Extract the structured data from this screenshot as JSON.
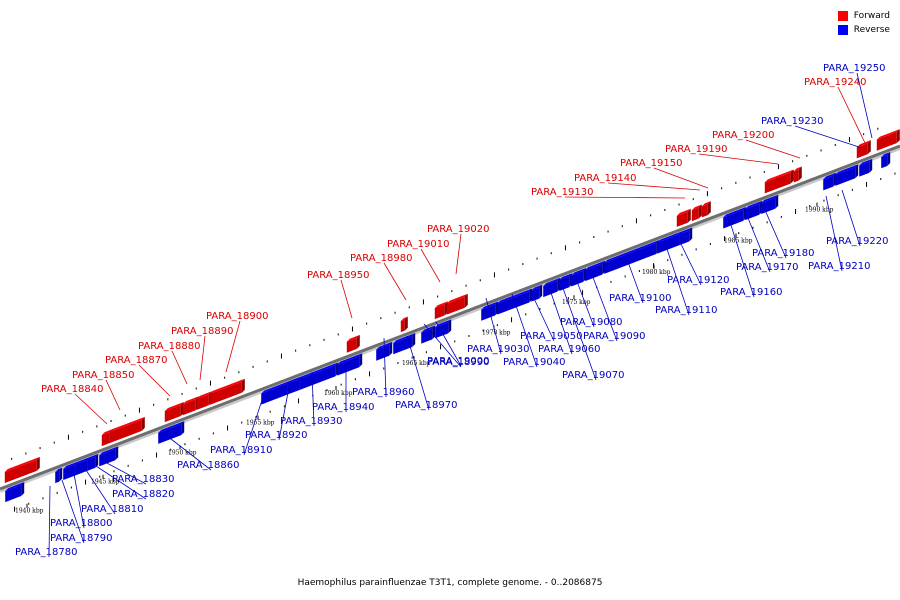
{
  "legend": {
    "forward_label": "Forward",
    "reverse_label": "Reverse",
    "forward_color": "#ff0000",
    "reverse_color": "#0000ff"
  },
  "caption": "Haemophilus parainfluenzae T3T1, complete genome. - 0..2086875",
  "ticks": [
    {
      "label": "1940 kbp"
    },
    {
      "label": "1945 kbp"
    },
    {
      "label": "1950 kbp"
    },
    {
      "label": "1955 kbp"
    },
    {
      "label": "1960 kbp"
    },
    {
      "label": "1965 kbp"
    },
    {
      "label": "1970 kbp"
    },
    {
      "label": "1975 kbp"
    },
    {
      "label": "1980 kbp"
    },
    {
      "label": "1985 kbp"
    },
    {
      "label": "1990 kbp"
    }
  ],
  "forward_genes": [
    {
      "name": "PARA_18840"
    },
    {
      "name": "PARA_18850"
    },
    {
      "name": "PARA_18870"
    },
    {
      "name": "PARA_18880"
    },
    {
      "name": "PARA_18890"
    },
    {
      "name": "PARA_18900"
    },
    {
      "name": "PARA_18950"
    },
    {
      "name": "PARA_18980"
    },
    {
      "name": "PARA_19010"
    },
    {
      "name": "PARA_19020"
    },
    {
      "name": "PARA_19130"
    },
    {
      "name": "PARA_19140"
    },
    {
      "name": "PARA_19150"
    },
    {
      "name": "PARA_19190"
    },
    {
      "name": "PARA_19200"
    },
    {
      "name": "PARA_19240"
    }
  ],
  "reverse_genes": [
    {
      "name": "PARA_18780"
    },
    {
      "name": "PARA_18790"
    },
    {
      "name": "PARA_18800"
    },
    {
      "name": "PARA_18810"
    },
    {
      "name": "PARA_18820"
    },
    {
      "name": "PARA_18830"
    },
    {
      "name": "PARA_18860"
    },
    {
      "name": "PARA_18910"
    },
    {
      "name": "PARA_18920"
    },
    {
      "name": "PARA_18930"
    },
    {
      "name": "PARA_18940"
    },
    {
      "name": "PARA_18960"
    },
    {
      "name": "PARA_18970"
    },
    {
      "name": "PARA_18990"
    },
    {
      "name": "PARA_19000"
    },
    {
      "name": "PARA_19030"
    },
    {
      "name": "PARA_19040"
    },
    {
      "name": "PARA_19050"
    },
    {
      "name": "PARA_19060"
    },
    {
      "name": "PARA_19070"
    },
    {
      "name": "PARA_19080"
    },
    {
      "name": "PARA_19090"
    },
    {
      "name": "PARA_19100"
    },
    {
      "name": "PARA_19110"
    },
    {
      "name": "PARA_19120"
    },
    {
      "name": "PARA_19160"
    },
    {
      "name": "PARA_19170"
    },
    {
      "name": "PARA_19180"
    },
    {
      "name": "PARA_19210"
    },
    {
      "name": "PARA_19220"
    },
    {
      "name": "PARA_19230"
    },
    {
      "name": "PARA_19250"
    }
  ]
}
